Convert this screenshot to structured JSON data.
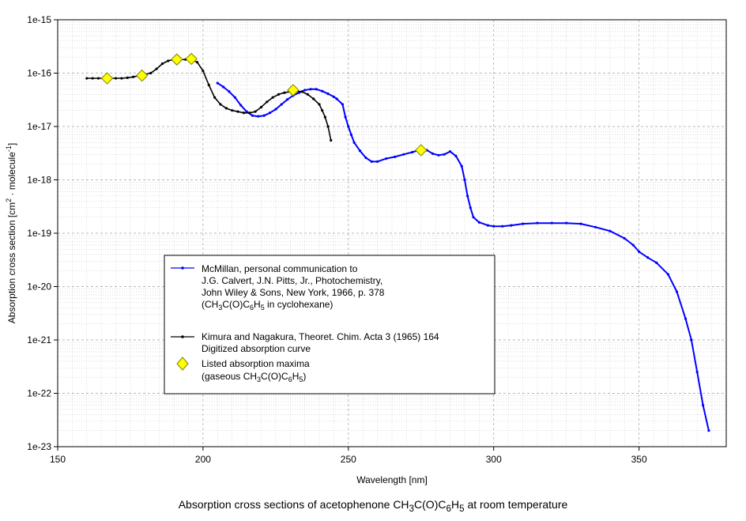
{
  "caption": {
    "prefix": "Absorption cross sections of acetophenone CH",
    "s1": "3",
    "mid": "C(O)C",
    "s2": "6",
    "mid2": "H",
    "s3": "5",
    "suffix": " at room temperature"
  },
  "colors": {
    "mcmillan": "#0000ff",
    "kimura": "#000000",
    "maxima_fill": "#ffff00",
    "grid": "#c8c8c8",
    "axis": "#000000"
  },
  "legend": {
    "mcmillan_lines": [
      "McMillan, personal communication to",
      "J.G. Calvert, J.N. Pitts, Jr., Photochemistry,",
      "John Wiley & Sons, New York, 1966, p. 378"
    ],
    "mcmillan_last": {
      "p1": "(CH",
      "s1": "3",
      "p2": "C(O)C",
      "s2": "6",
      "p3": "H",
      "s3": "5",
      "p4": " in cyclohexane)"
    },
    "kimura_lines": [
      "Kimura and Nagakura, Theoret. Chim. Acta 3 (1965) 164",
      "Digitized absorption curve"
    ],
    "maxima_line1": "Listed absorption maxima",
    "maxima_last": {
      "p1": "(gaseous CH",
      "s1": "3",
      "p2": "C(O)C",
      "s2": "6",
      "p3": "H",
      "s3": "5",
      "p4": ")"
    }
  },
  "chart_data": {
    "type": "scatter",
    "xlabel": "Wavelength [nm]",
    "ylabel": {
      "p1": "Absorption cross section [cm",
      "sup1": "2",
      "p2": " · molecule",
      "sup2": "-1",
      "p3": "]"
    },
    "xlim": [
      150,
      380
    ],
    "ylim": [
      1e-23,
      1e-15
    ],
    "y_scale": "log",
    "x_ticks": [
      150,
      200,
      250,
      300,
      350
    ],
    "y_tick_labels": [
      "1e-15",
      "1e-16",
      "1e-17",
      "1e-18",
      "1e-19",
      "1e-20",
      "1e-21",
      "1e-22",
      "1e-23"
    ],
    "grid": true,
    "legend_position": "center-left",
    "series": [
      {
        "name": "McMillan",
        "style": "line-markers",
        "x": [
          205,
          207,
          209,
          211,
          213,
          215,
          217,
          219,
          221,
          223,
          225,
          227,
          229,
          231,
          233,
          235,
          237,
          239,
          241,
          243,
          245,
          246,
          248,
          249,
          250,
          251,
          252,
          254,
          256,
          258,
          260,
          263,
          266,
          269,
          272,
          275,
          277,
          279,
          281,
          283,
          285,
          287,
          289,
          290,
          291,
          292,
          293,
          295,
          298,
          300,
          303,
          306,
          310,
          315,
          320,
          325,
          330,
          335,
          340,
          345,
          348,
          350,
          353,
          356,
          360,
          363,
          366,
          368,
          370,
          372,
          374
        ],
        "y": [
          6.5e-17,
          5.5e-17,
          4.5e-17,
          3.5e-17,
          2.5e-17,
          1.9e-17,
          1.6e-17,
          1.55e-17,
          1.6e-17,
          1.8e-17,
          2.1e-17,
          2.6e-17,
          3.2e-17,
          3.8e-17,
          4.3e-17,
          4.8e-17,
          5e-17,
          5e-17,
          4.6e-17,
          4.1e-17,
          3.6e-17,
          3.3e-17,
          2.6e-17,
          1.5e-17,
          1e-17,
          7e-18,
          5e-18,
          3.5e-18,
          2.6e-18,
          2.2e-18,
          2.2e-18,
          2.5e-18,
          2.7e-18,
          3e-18,
          3.3e-18,
          3.7e-18,
          3.6e-18,
          3.1e-18,
          2.9e-18,
          3e-18,
          3.4e-18,
          2.8e-18,
          1.8e-18,
          1e-18,
          5e-19,
          3e-19,
          2e-19,
          1.6e-19,
          1.4e-19,
          1.35e-19,
          1.35e-19,
          1.4e-19,
          1.5e-19,
          1.55e-19,
          1.55e-19,
          1.55e-19,
          1.5e-19,
          1.3e-19,
          1.1e-19,
          8e-20,
          6e-20,
          4.5e-20,
          3.5e-20,
          2.8e-20,
          1.7e-20,
          8e-21,
          2.5e-21,
          1e-21,
          2.5e-22,
          6e-23,
          2e-23
        ]
      },
      {
        "name": "Kimura and Nagakura",
        "style": "line-markers",
        "x": [
          160,
          162,
          164,
          166,
          168,
          170,
          172,
          174,
          176,
          178,
          180,
          182,
          184,
          186,
          188,
          190,
          192,
          194,
          196,
          198,
          200,
          202,
          204,
          206,
          208,
          210,
          212,
          214,
          216,
          218,
          220,
          222,
          224,
          226,
          228,
          230,
          232,
          234,
          236,
          238,
          240,
          241,
          242,
          243,
          244
        ],
        "y": [
          8e-17,
          8e-17,
          8e-17,
          8e-17,
          8e-17,
          8e-17,
          8e-17,
          8.2e-17,
          8.5e-17,
          9e-17,
          9.5e-17,
          1e-16,
          1.2e-16,
          1.5e-16,
          1.7e-16,
          1.8e-16,
          1.8e-16,
          1.8e-16,
          1.8e-16,
          1.6e-16,
          1.1e-16,
          6e-17,
          3.5e-17,
          2.6e-17,
          2.2e-17,
          2e-17,
          1.9e-17,
          1.8e-17,
          1.8e-17,
          1.9e-17,
          2.3e-17,
          2.9e-17,
          3.5e-17,
          4e-17,
          4.3e-17,
          4.5e-17,
          4.6e-17,
          4.5e-17,
          4e-17,
          3.3e-17,
          2.6e-17,
          2e-17,
          1.5e-17,
          1e-17,
          5.5e-18
        ]
      },
      {
        "name": "Listed absorption maxima",
        "style": "diamonds",
        "x": [
          167,
          179,
          191,
          196,
          231,
          275
        ],
        "y": [
          8e-17,
          9e-17,
          1.8e-16,
          1.85e-16,
          4.8e-17,
          3.6e-18
        ]
      }
    ]
  }
}
